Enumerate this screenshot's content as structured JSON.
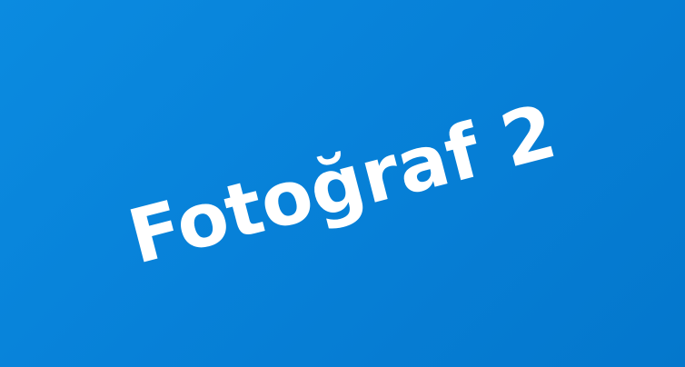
{
  "image": {
    "caption": "Fotoğraf 2"
  },
  "colors": {
    "background": "#0781d8",
    "text": "#ffffff"
  }
}
